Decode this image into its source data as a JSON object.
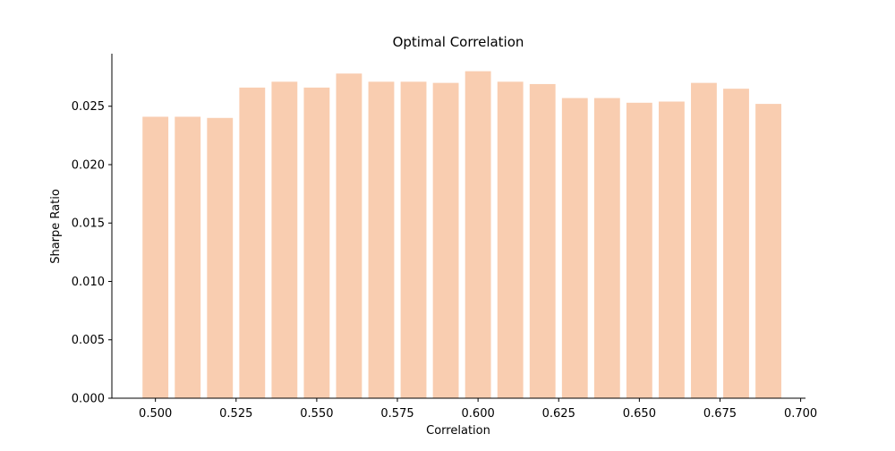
{
  "chart_data": {
    "type": "bar",
    "title": "Optimal Correlation",
    "xlabel": "Correlation",
    "ylabel": "Sharpe Ratio",
    "x": [
      0.5,
      0.51,
      0.52,
      0.53,
      0.54,
      0.55,
      0.56,
      0.57,
      0.58,
      0.59,
      0.6,
      0.61,
      0.62,
      0.63,
      0.64,
      0.65,
      0.66,
      0.67,
      0.68,
      0.69
    ],
    "values": [
      0.0241,
      0.0241,
      0.024,
      0.0266,
      0.0271,
      0.0266,
      0.0278,
      0.0271,
      0.0271,
      0.027,
      0.028,
      0.0271,
      0.0269,
      0.0257,
      0.0257,
      0.0253,
      0.0254,
      0.027,
      0.0265,
      0.0252
    ],
    "bar_color": "#f9cdb0",
    "xlim": [
      0.4865,
      0.7015
    ],
    "ylim": [
      0,
      0.0295
    ],
    "xticks": [
      0.5,
      0.525,
      0.55,
      0.575,
      0.6,
      0.625,
      0.65,
      0.675,
      0.7
    ],
    "xtick_labels": [
      "0.500",
      "0.525",
      "0.550",
      "0.575",
      "0.600",
      "0.625",
      "0.650",
      "0.675",
      "0.700"
    ],
    "yticks": [
      0.0,
      0.005,
      0.01,
      0.015,
      0.02,
      0.025
    ],
    "ytick_labels": [
      "0.000",
      "0.005",
      "0.010",
      "0.015",
      "0.020",
      "0.025"
    ],
    "grid": false,
    "legend": "none"
  }
}
